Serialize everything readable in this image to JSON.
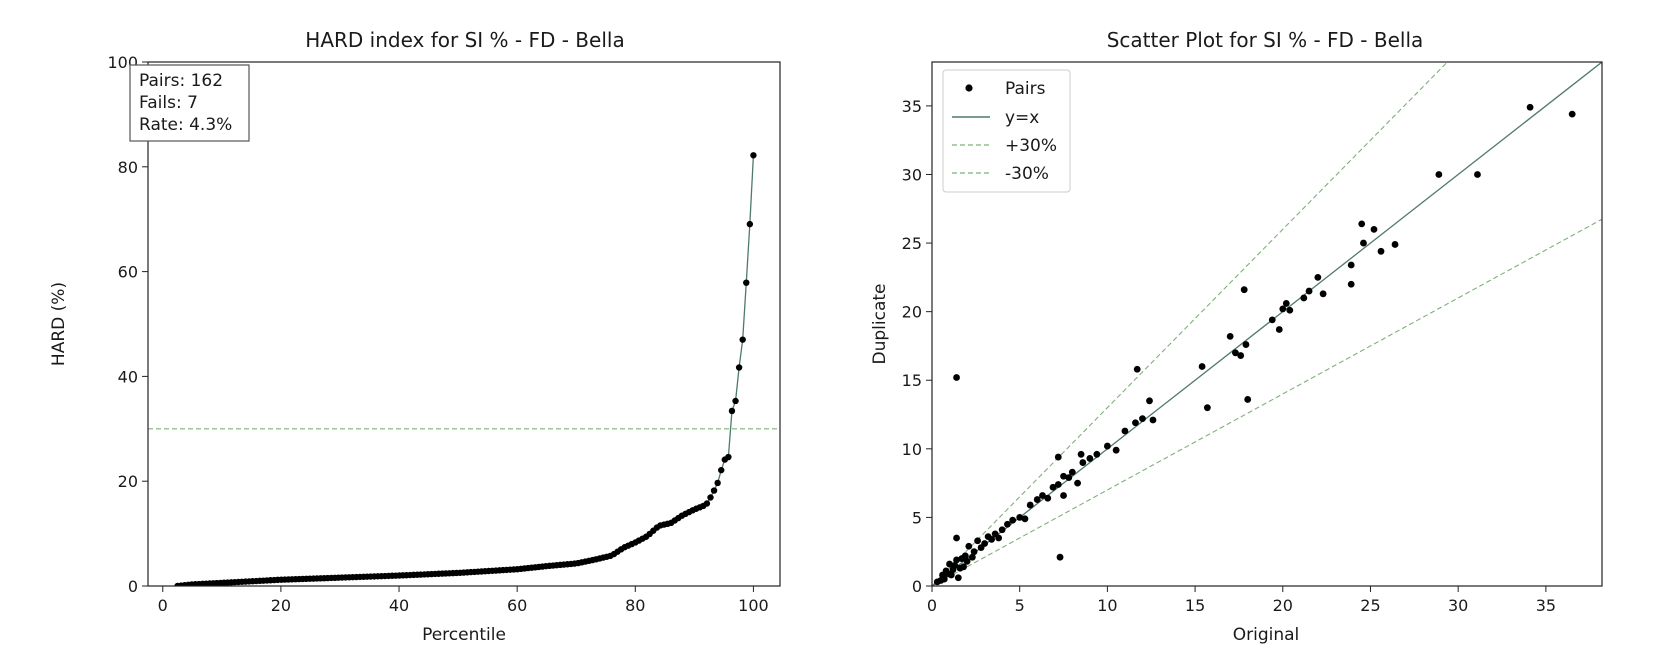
{
  "chart_data": [
    {
      "type": "line",
      "title": "HARD index for SI % - FD - Bella",
      "xlabel": "Percentile",
      "ylabel": "HARD (%)",
      "xlim": [
        -2.5,
        104.5
      ],
      "ylim": [
        0,
        100
      ],
      "xticks": [
        "0",
        "20",
        "40",
        "60",
        "80",
        "100"
      ],
      "yticks": [
        "0",
        "20",
        "40",
        "60",
        "80",
        "100"
      ],
      "grid": false,
      "threshold": 30,
      "stats_box": {
        "pairs": "Pairs: 162",
        "fails": "Fails: 7",
        "rate": "Rate: 4.3%"
      },
      "curve_knots": [
        [
          2.5,
          0.0
        ],
        [
          5,
          0.3
        ],
        [
          10,
          0.6
        ],
        [
          15,
          0.9
        ],
        [
          20,
          1.2
        ],
        [
          30,
          1.6
        ],
        [
          40,
          2.0
        ],
        [
          50,
          2.5
        ],
        [
          60,
          3.2
        ],
        [
          65,
          3.8
        ],
        [
          70,
          4.3
        ],
        [
          73,
          5.0
        ],
        [
          76,
          5.8
        ],
        [
          78,
          7.3
        ],
        [
          80,
          8.3
        ],
        [
          82,
          9.5
        ],
        [
          84,
          11.5
        ],
        [
          86,
          12.0
        ],
        [
          88,
          13.5
        ],
        [
          90,
          14.6
        ],
        [
          92,
          15.5
        ],
        [
          93,
          17.4
        ],
        [
          94,
          19.8
        ],
        [
          95,
          24.0
        ],
        [
          96,
          24.8
        ],
        [
          96.3,
          33.2
        ],
        [
          97,
          35.4
        ],
        [
          97.5,
          41.5
        ],
        [
          98,
          42.8
        ],
        [
          98.5,
          54.3
        ],
        [
          99,
          60.5
        ],
        [
          100,
          82.2
        ]
      ],
      "series": [
        {
          "name": "HARD",
          "n": 162
        }
      ]
    },
    {
      "type": "scatter",
      "title": "Scatter Plot for SI % - FD - Bella",
      "xlabel": "Original",
      "ylabel": "Duplicate",
      "xlim": [
        0,
        38.2
      ],
      "ylim": [
        0,
        38.2
      ],
      "xticks": [
        "0",
        "5",
        "10",
        "15",
        "20",
        "25",
        "30",
        "35"
      ],
      "yticks": [
        "0",
        "5",
        "10",
        "15",
        "20",
        "25",
        "30",
        "35"
      ],
      "grid": false,
      "legend_position": "top-left",
      "legend": [
        "Pairs",
        "y=x",
        "+30%",
        "-30%"
      ],
      "reference_lines": {
        "identity_slope": 1.0,
        "upper_slope": 1.3,
        "lower_slope": 0.7
      },
      "points": [
        [
          0.3,
          0.3
        ],
        [
          0.5,
          0.4
        ],
        [
          0.6,
          0.8
        ],
        [
          0.7,
          0.5
        ],
        [
          0.8,
          1.1
        ],
        [
          0.9,
          0.9
        ],
        [
          1.0,
          1.6
        ],
        [
          1.1,
          0.8
        ],
        [
          1.2,
          1.2
        ],
        [
          1.3,
          1.5
        ],
        [
          1.4,
          1.9
        ],
        [
          1.5,
          0.6
        ],
        [
          1.6,
          1.3
        ],
        [
          1.7,
          2.0
        ],
        [
          1.8,
          1.4
        ],
        [
          1.9,
          2.2
        ],
        [
          2.0,
          1.8
        ],
        [
          2.1,
          2.9
        ],
        [
          2.3,
          2.1
        ],
        [
          2.4,
          2.5
        ],
        [
          2.6,
          3.3
        ],
        [
          2.8,
          2.8
        ],
        [
          3.0,
          3.1
        ],
        [
          3.2,
          3.6
        ],
        [
          3.4,
          3.4
        ],
        [
          3.6,
          3.8
        ],
        [
          3.8,
          3.5
        ],
        [
          4.0,
          4.1
        ],
        [
          4.3,
          4.5
        ],
        [
          4.6,
          4.8
        ],
        [
          5.0,
          5.0
        ],
        [
          5.3,
          4.9
        ],
        [
          5.6,
          5.9
        ],
        [
          6.0,
          6.3
        ],
        [
          6.3,
          6.6
        ],
        [
          6.6,
          6.4
        ],
        [
          6.9,
          7.2
        ],
        [
          7.2,
          7.4
        ],
        [
          7.5,
          8.0
        ],
        [
          7.8,
          7.9
        ],
        [
          8.0,
          8.3
        ],
        [
          8.3,
          7.5
        ],
        [
          8.6,
          9.0
        ],
        [
          9.0,
          9.3
        ],
        [
          9.4,
          9.6
        ],
        [
          10.0,
          10.2
        ],
        [
          10.5,
          9.9
        ],
        [
          11.0,
          11.3
        ],
        [
          11.6,
          11.9
        ],
        [
          12.0,
          12.2
        ],
        [
          12.6,
          12.1
        ],
        [
          12.4,
          13.5
        ],
        [
          11.7,
          15.8
        ],
        [
          1.4,
          15.2
        ],
        [
          1.4,
          3.5
        ],
        [
          7.3,
          2.1
        ],
        [
          7.2,
          9.4
        ],
        [
          7.5,
          6.6
        ],
        [
          8.5,
          9.6
        ],
        [
          15.4,
          16.0
        ],
        [
          15.7,
          13.0
        ],
        [
          17.0,
          18.2
        ],
        [
          17.3,
          17.0
        ],
        [
          17.6,
          16.8
        ],
        [
          17.9,
          17.6
        ],
        [
          17.8,
          21.6
        ],
        [
          18.0,
          13.6
        ],
        [
          19.4,
          19.4
        ],
        [
          19.8,
          18.7
        ],
        [
          20.0,
          20.2
        ],
        [
          20.2,
          20.6
        ],
        [
          20.4,
          20.1
        ],
        [
          21.2,
          21.0
        ],
        [
          21.5,
          21.5
        ],
        [
          22.0,
          22.5
        ],
        [
          22.3,
          21.3
        ],
        [
          23.9,
          23.4
        ],
        [
          23.9,
          22.0
        ],
        [
          24.5,
          26.4
        ],
        [
          24.6,
          25.0
        ],
        [
          25.2,
          26.0
        ],
        [
          25.6,
          24.4
        ],
        [
          26.4,
          24.9
        ],
        [
          28.9,
          30.0
        ],
        [
          31.1,
          30.0
        ],
        [
          34.1,
          34.9
        ],
        [
          36.5,
          34.4
        ]
      ]
    }
  ]
}
